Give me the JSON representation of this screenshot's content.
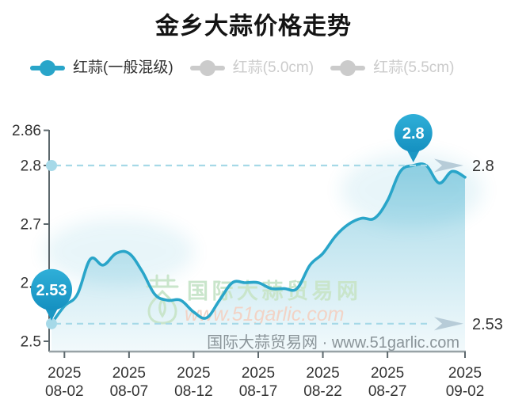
{
  "header": {
    "title": "金乡大蒜价格走势"
  },
  "legend": {
    "items": [
      {
        "label": "红蒜(一般混级)",
        "color": "#29a5c9",
        "text_color": "#333333",
        "active": true
      },
      {
        "label": "红蒜(5.0cm)",
        "color": "#cbcbcb",
        "text_color": "#cbcbcb",
        "active": false
      },
      {
        "label": "红蒜(5.5cm)",
        "color": "#cbcbcb",
        "text_color": "#cbcbcb",
        "active": false
      }
    ]
  },
  "watermark": {
    "brand": "国际大蒜贸易网",
    "url": "www.51garlic.com"
  },
  "source_line": {
    "text": "国际大蒜贸易网 · www.51garlic.com"
  },
  "colors": {
    "accent": "#29a5c9",
    "balloon_top": "#2fafd8",
    "balloon_bottom": "#1590c0",
    "balloon_tail": "#1a97c4",
    "dashed": "#a6d9e7",
    "dot": "#a6d9e8",
    "arrow": "#b7ccd8",
    "axis": "#5d686d",
    "axis_bottom": "#98a2a6",
    "label": "#333333",
    "watermark_green": "#c9e5cb",
    "watermark_salmon": "#f2d3c6",
    "source_text": "#8a9499",
    "marker_text": "#ffffff"
  },
  "chart_data": {
    "type": "line",
    "title": "金乡大蒜价格走势",
    "xlabel": "",
    "ylabel": "",
    "ylim": [
      2.5,
      2.86
    ],
    "grid": false,
    "legend_position": "top-left",
    "series": [
      {
        "name": "红蒜(一般混级)",
        "color": "#29a5c9",
        "active": true,
        "x": [
          "2025-08-01",
          "2025-08-02",
          "2025-08-03",
          "2025-08-04",
          "2025-08-05",
          "2025-08-06",
          "2025-08-07",
          "2025-08-08",
          "2025-08-09",
          "2025-08-10",
          "2025-08-11",
          "2025-08-12",
          "2025-08-13",
          "2025-08-14",
          "2025-08-15",
          "2025-08-16",
          "2025-08-17",
          "2025-08-18",
          "2025-08-19",
          "2025-08-20",
          "2025-08-21",
          "2025-08-22",
          "2025-08-23",
          "2025-08-24",
          "2025-08-25",
          "2025-08-26",
          "2025-08-27",
          "2025-08-28",
          "2025-08-29",
          "2025-08-30",
          "2025-08-31",
          "2025-09-01",
          "2025-09-02"
        ],
        "values": [
          2.53,
          2.56,
          2.58,
          2.64,
          2.63,
          2.65,
          2.65,
          2.62,
          2.58,
          2.57,
          2.57,
          2.55,
          2.54,
          2.57,
          2.6,
          2.6,
          2.6,
          2.59,
          2.59,
          2.59,
          2.63,
          2.65,
          2.68,
          2.7,
          2.71,
          2.71,
          2.74,
          2.79,
          2.8,
          2.8,
          2.77,
          2.79,
          2.78
        ]
      },
      {
        "name": "红蒜(5.0cm)",
        "color": "#cbcbcb",
        "active": false,
        "values": []
      },
      {
        "name": "红蒜(5.5cm)",
        "color": "#cbcbcb",
        "active": false,
        "values": []
      }
    ],
    "y_ticks": [
      {
        "value": 2.86,
        "label": "2.86"
      },
      {
        "value": 2.8,
        "label": "2.8"
      },
      {
        "value": 2.7,
        "label": "2.7"
      },
      {
        "value": 2.6,
        "label": "2.6"
      },
      {
        "value": 2.5,
        "label": "2.5"
      }
    ],
    "x_ticks": [
      {
        "index": 1,
        "year": "2025",
        "day": "08-02"
      },
      {
        "index": 6,
        "year": "2025",
        "day": "08-07"
      },
      {
        "index": 11,
        "year": "2025",
        "day": "08-12"
      },
      {
        "index": 16,
        "year": "2025",
        "day": "08-17"
      },
      {
        "index": 21,
        "year": "2025",
        "day": "08-22"
      },
      {
        "index": 26,
        "year": "2025",
        "day": "08-27"
      },
      {
        "index": 32,
        "year": "2025",
        "day": "09-02"
      }
    ],
    "reference_lines": [
      {
        "value": 2.8,
        "label": "2.8"
      },
      {
        "value": 2.53,
        "label": "2.53"
      }
    ],
    "markers": [
      {
        "index": 0,
        "value": 2.53,
        "label": "2.53"
      },
      {
        "index": 28,
        "value": 2.8,
        "label": "2.8"
      }
    ]
  }
}
